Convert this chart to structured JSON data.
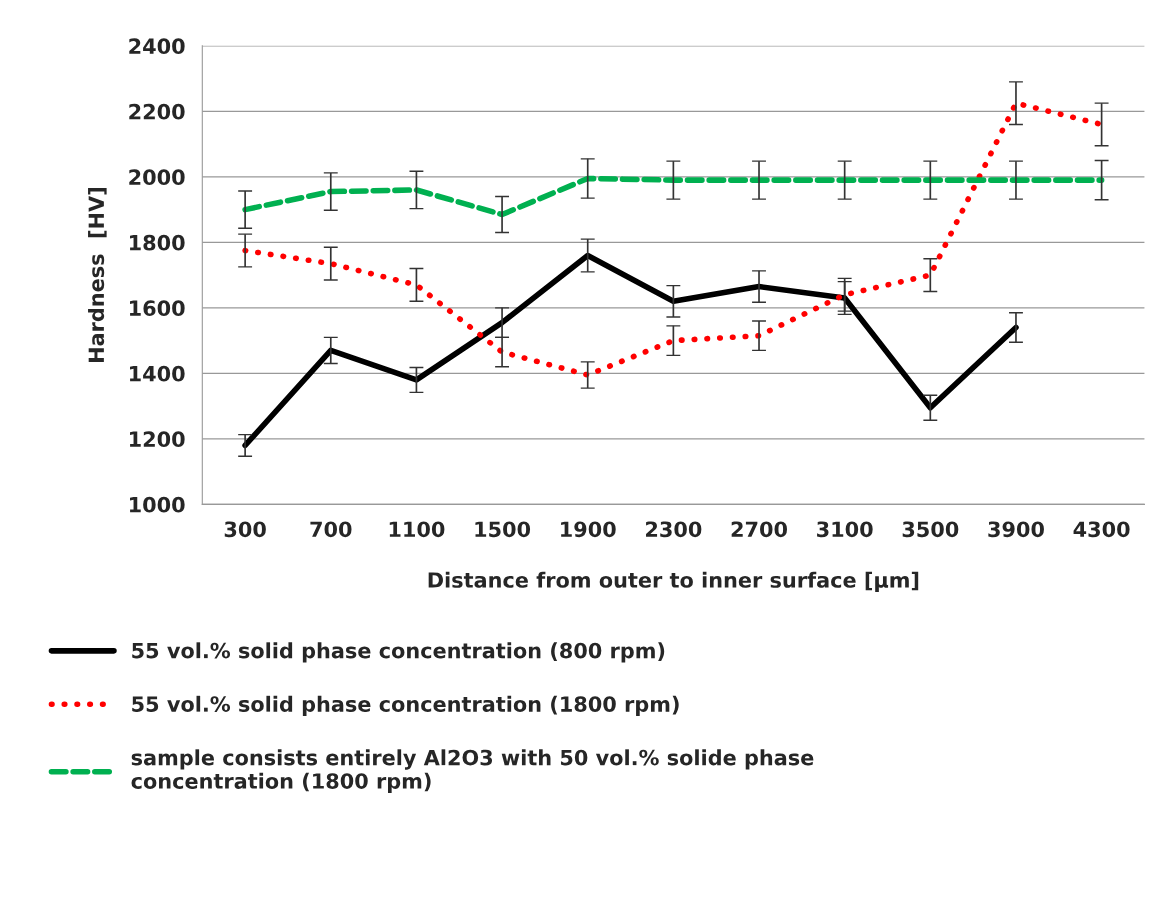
{
  "chart_data": {
    "type": "line",
    "xlabel": "Distance from outer to inner surface [µm]",
    "ylabel": "Hardness  [HV]",
    "categories": [
      "300",
      "700",
      "1100",
      "1500",
      "1900",
      "2300",
      "2700",
      "3100",
      "3500",
      "3900",
      "4300"
    ],
    "ylim": [
      1000,
      2400
    ],
    "yticks": [
      1000,
      1200,
      1400,
      1600,
      1800,
      2000,
      2200,
      2400
    ],
    "grid": "y",
    "legend": "bottom",
    "series": [
      {
        "name": "55 vol.% solid phase concentration (800 rpm)",
        "color": "#000000",
        "line_style": "solid",
        "values": [
          1180,
          1470,
          1380,
          1555,
          1760,
          1620,
          1665,
          1630,
          1295,
          1540,
          null
        ],
        "errors": [
          33,
          40,
          38,
          45,
          50,
          48,
          48,
          50,
          38,
          45,
          null
        ]
      },
      {
        "name": "55 vol.% solid phase concentration (1800 rpm)",
        "color": "#ff0000",
        "line_style": "dotted",
        "values": [
          1775,
          1735,
          1670,
          1465,
          1395,
          1500,
          1515,
          1640,
          1700,
          2225,
          2160
        ],
        "errors": [
          50,
          50,
          50,
          45,
          40,
          45,
          45,
          50,
          50,
          65,
          65
        ]
      },
      {
        "name": "sample consists entirely Al2O3 with 50 vol.% solide phase concentration (1800 rpm)",
        "color": "#00b050",
        "line_style": "dashed",
        "values": [
          1900,
          1955,
          1960,
          1885,
          1995,
          1990,
          1990,
          1990,
          1990,
          1990,
          1990
        ],
        "errors": [
          57,
          57,
          57,
          55,
          60,
          58,
          58,
          58,
          58,
          58,
          60
        ]
      }
    ]
  }
}
